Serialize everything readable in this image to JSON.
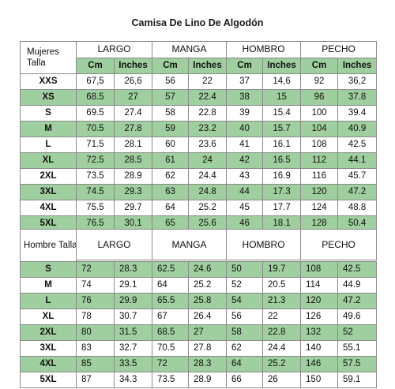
{
  "title": "Camisa De Lino De Algodón",
  "measures": [
    "LARGO",
    "MANGA",
    "HOMBRO",
    "PECHO"
  ],
  "units": [
    "Cm",
    "Inches"
  ],
  "women": {
    "header": "Mujeres Talla",
    "rows": [
      [
        "XXS",
        "67,5",
        "26,6",
        "56",
        "22",
        "37",
        "14,6",
        "92",
        "36,2"
      ],
      [
        "XS",
        "68.5",
        "27",
        "57",
        "22.4",
        "38",
        "15",
        "96",
        "37.8"
      ],
      [
        "S",
        "69.5",
        "27.4",
        "58",
        "22.8",
        "39",
        "15.4",
        "100",
        "39.4"
      ],
      [
        "M",
        "70.5",
        "27.8",
        "59",
        "23.2",
        "40",
        "15.7",
        "104",
        "40.9"
      ],
      [
        "L",
        "71.5",
        "28.1",
        "60",
        "23.6",
        "41",
        "16.1",
        "108",
        "42.5"
      ],
      [
        "XL",
        "72.5",
        "28.5",
        "61",
        "24",
        "42",
        "16.5",
        "112",
        "44.1"
      ],
      [
        "2XL",
        "73.5",
        "28.9",
        "62",
        "24.4",
        "43",
        "16.9",
        "116",
        "45.7"
      ],
      [
        "3XL",
        "74.5",
        "29.3",
        "63",
        "24.8",
        "44",
        "17.3",
        "120",
        "47.2"
      ],
      [
        "4XL",
        "75.5",
        "29.7",
        "64",
        "25.2",
        "45",
        "17.7",
        "124",
        "48.8"
      ],
      [
        "5XL",
        "76.5",
        "30.1",
        "65",
        "25.6",
        "46",
        "18.1",
        "128",
        "50.4"
      ]
    ]
  },
  "men": {
    "header": "Hombre Talla",
    "rows": [
      [
        "S",
        "72",
        "28.3",
        "62.5",
        "24.6",
        "50",
        "19.7",
        "108",
        "42.5"
      ],
      [
        "M",
        "74",
        "29.1",
        "64",
        "25.2",
        "52",
        "20.5",
        "114",
        "44.9"
      ],
      [
        "L",
        "76",
        "29.9",
        "65.5",
        "25.8",
        "54",
        "21.3",
        "120",
        "47.2"
      ],
      [
        "XL",
        "78",
        "30.7",
        "67",
        "26.4",
        "56",
        "22",
        "126",
        "49.6"
      ],
      [
        "2XL",
        "80",
        "31.5",
        "68.5",
        "27",
        "58",
        "22.8",
        "132",
        "52"
      ],
      [
        "3XL",
        "83",
        "32.7",
        "70.5",
        "27.8",
        "62",
        "24.4",
        "140",
        "55.1"
      ],
      [
        "4XL",
        "85",
        "33.5",
        "72",
        "28.3",
        "64",
        "25.2",
        "146",
        "57.5"
      ],
      [
        "5XL",
        "87",
        "34.3",
        "73.5",
        "28.9",
        "66",
        "26",
        "150",
        "59.1"
      ]
    ]
  },
  "colors": {
    "stripe": "#9fcf9f",
    "white": "#ffffff",
    "border": "#8a8a8a"
  }
}
